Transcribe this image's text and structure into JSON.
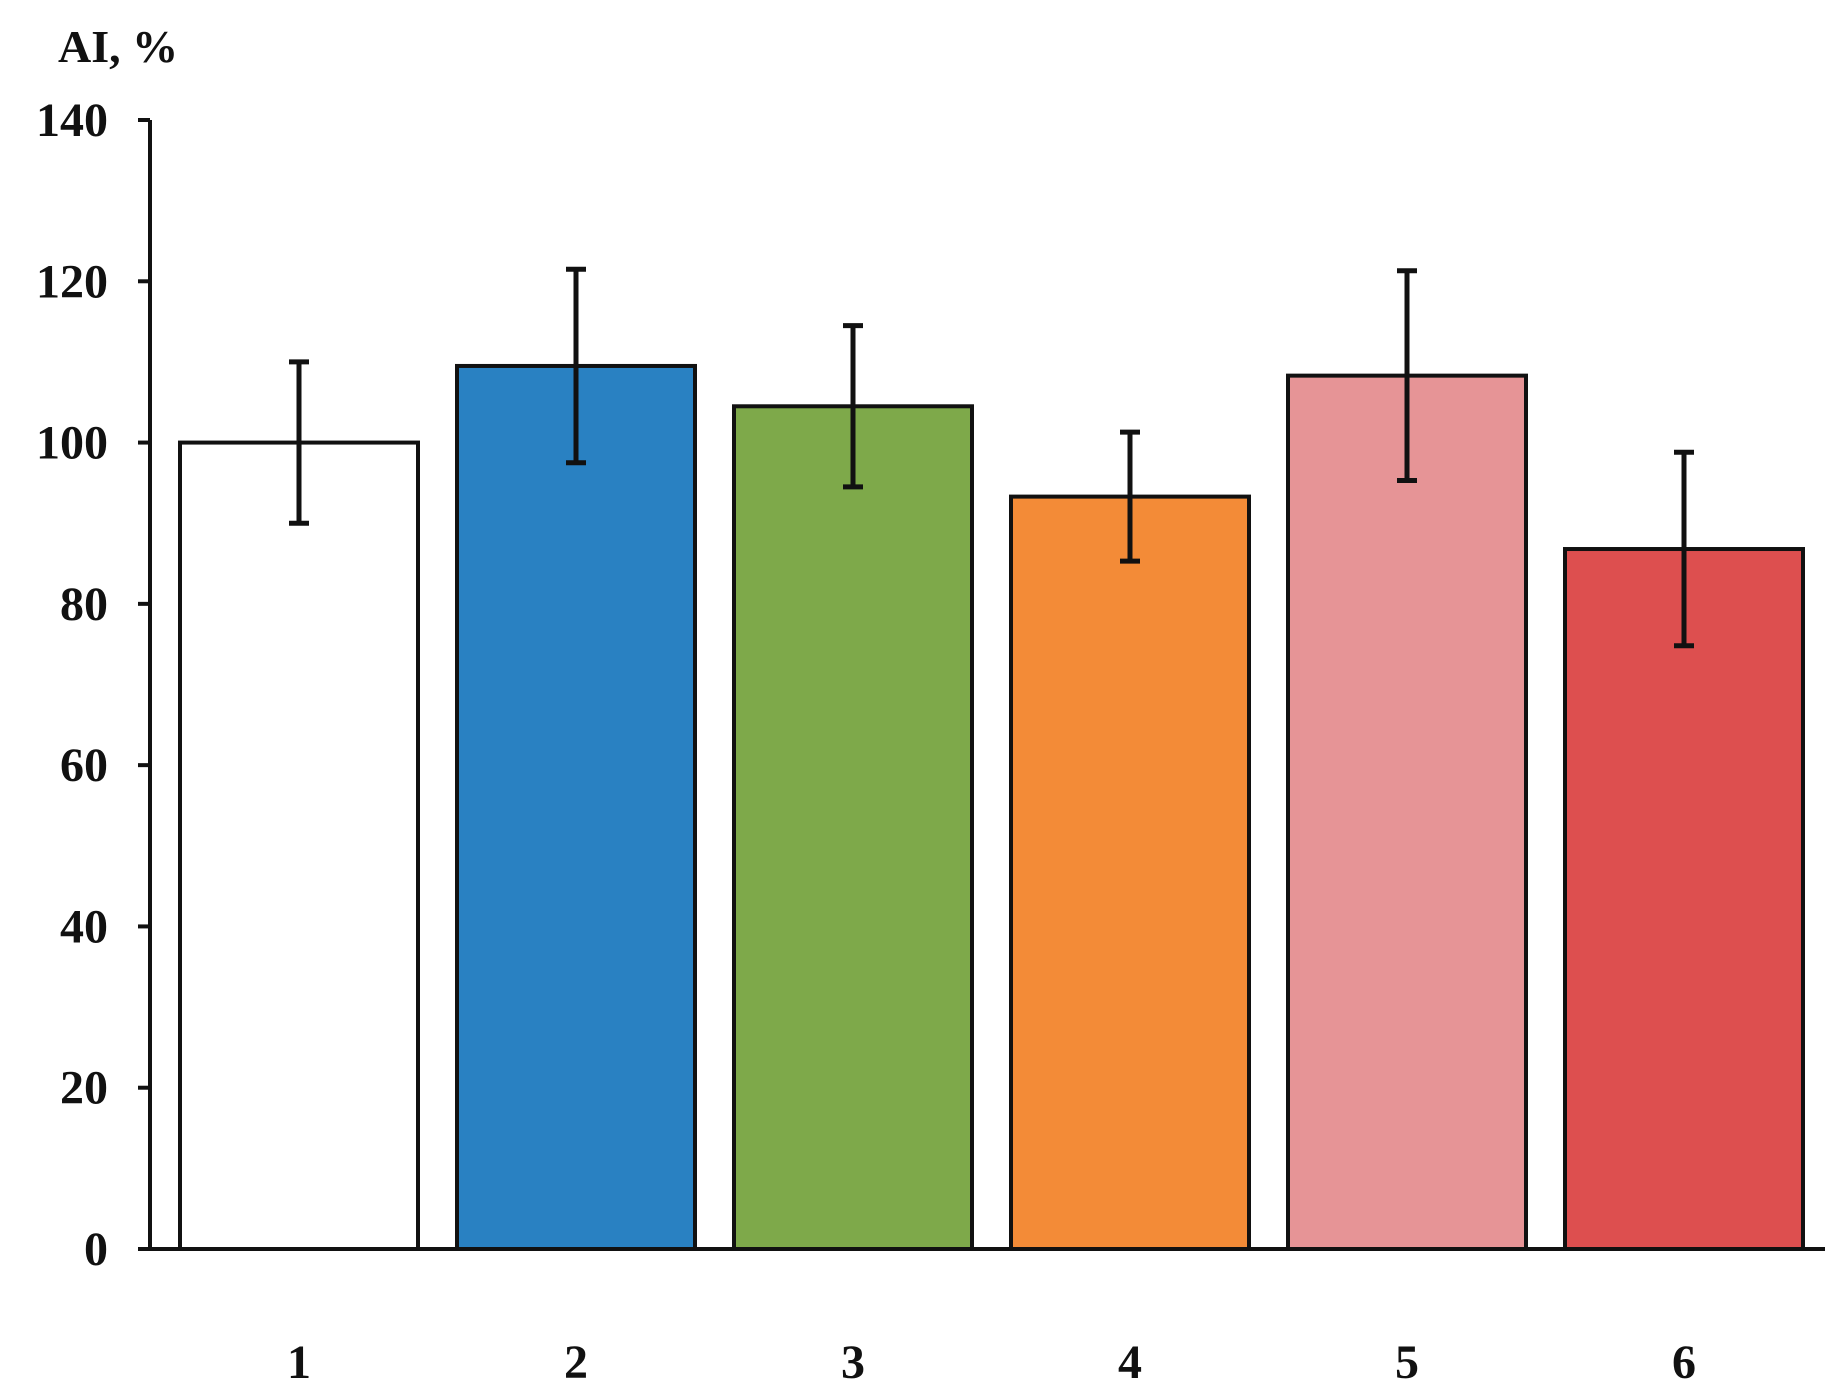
{
  "chart_data": {
    "type": "bar",
    "categories": [
      "1",
      "2",
      "3",
      "4",
      "5",
      "6"
    ],
    "values": [
      100,
      109.5,
      104.5,
      93.3,
      108.3,
      86.8
    ],
    "errors": [
      10,
      12,
      10,
      8,
      13,
      12
    ],
    "colors": [
      "#ffffff",
      "#2981c2",
      "#7ea94a",
      "#f38b37",
      "#e69496",
      "#dd4f4f"
    ],
    "ylabel": "AI, %",
    "xlabel": "",
    "ylim": [
      0,
      140
    ],
    "yticks": [
      0,
      20,
      40,
      60,
      80,
      100,
      120,
      140
    ],
    "grid": false
  }
}
